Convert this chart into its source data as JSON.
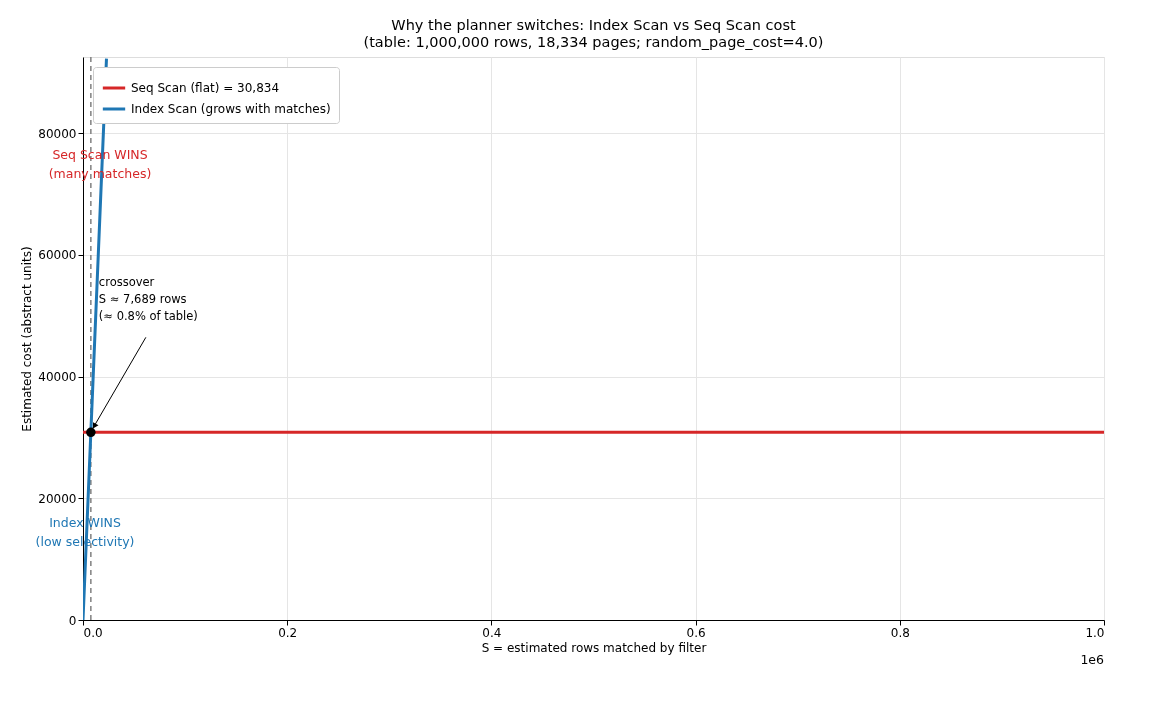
{
  "chart_data": {
    "type": "line",
    "title": "Why the planner switches: Index Scan vs Seq Scan cost",
    "subtitle": "(table: 1,000,000 rows, 18,334 pages; random_page_cost=4.0)",
    "xlabel": "S = estimated rows matched by filter",
    "ylabel": "Estimated cost (abstract units)",
    "series": [
      {
        "name": "Seq Scan (flat) = 30,834",
        "color": "#d62728",
        "x": [
          0,
          1
        ],
        "values": [
          30834,
          30834
        ]
      },
      {
        "name": "Index Scan (grows with matches)",
        "color": "#1f77b4",
        "x": [
          0,
          0.007689,
          0.023
        ],
        "values": [
          0,
          30834,
          92230
        ]
      },
      {
        "type": "scatter",
        "color": "#000000",
        "x": [
          0.007689
        ],
        "values": [
          30834
        ],
        "marker": "circle"
      }
    ],
    "xlim": [
      0,
      1
    ],
    "ylim": [
      0,
      92500
    ],
    "xticks": [
      {
        "value": 0,
        "label": "0.0"
      },
      0.2,
      0.4,
      0.6,
      0.8,
      {
        "value": 1,
        "label": "1.0"
      }
    ],
    "yticks": [
      0,
      20000,
      40000,
      60000,
      80000
    ],
    "ref_lines": [
      {
        "axis": "x",
        "value": 0.007689,
        "color": "#808080",
        "line_style": "dashed"
      }
    ],
    "annotations": [
      {
        "text": "crossover\nS ≈ 7,689 rows\n(≈ 0.8% of table)",
        "x": 0.007689,
        "y": 30834
      },
      "Seq Scan WINS\n(many matches)",
      "Index WINS\n(low selectivity)",
      "1e6"
    ],
    "grid": true,
    "legend": "top left",
    "marker": "none",
    "line_style": "solid"
  }
}
